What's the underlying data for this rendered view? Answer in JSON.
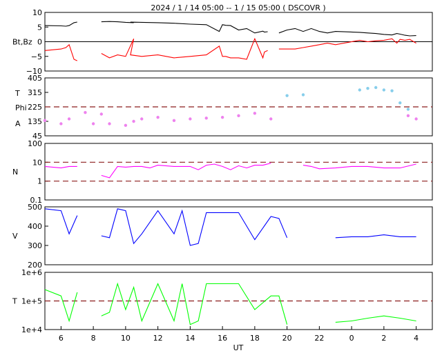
{
  "title": "2024 /  1 / 14   05:00  --   1 / 15   05:00 ( DSCOVR )",
  "xlabel": "UT",
  "x_ticks": [
    "6",
    "8",
    "10",
    "12",
    "14",
    "16",
    "18",
    "20",
    "22",
    "0",
    "2",
    "4"
  ],
  "colors": {
    "bt": "#000000",
    "bz": "#ff0000",
    "temp_mag": "#87ceeb",
    "phi": "#ee82ee",
    "phi_flag": "#aaaaaa",
    "density": "#ff00ff",
    "speed": "#0000ff",
    "temperature": "#00ff00",
    "ref_line": "#8b1a1a"
  },
  "chart_data": [
    {
      "type": "line",
      "panel": "Bt,Bz",
      "ylabel": "Bt,Bz",
      "ylim": [
        -10,
        10
      ],
      "y_ticks": [
        "10",
        "5",
        "0",
        "−5",
        "−10"
      ],
      "x_hours_since_05UT": [
        0,
        1,
        1.3,
        1.5,
        1.8,
        2,
        2.3,
        3.5,
        4,
        4.5,
        5,
        5.5,
        5.3,
        6,
        7,
        8,
        9,
        10,
        10.8,
        11,
        11.2,
        11.5,
        12,
        12.5,
        13,
        13.5,
        13.6,
        13.8,
        14,
        14.5,
        15,
        15.5,
        16,
        16.5,
        17,
        17.5,
        18,
        19.5,
        20,
        20.5,
        21,
        21.5,
        21.8,
        22,
        22.3,
        22.6,
        23
      ],
      "series": [
        {
          "name": "Bt",
          "values": [
            5.5,
            5.4,
            5.3,
            5.5,
            6.5,
            6.7,
            null,
            6.8,
            6.9,
            6.8,
            6.6,
            6.5,
            6.7,
            6.6,
            6.5,
            6.3,
            6.0,
            5.8,
            3.5,
            5.8,
            5.6,
            5.5,
            4.0,
            4.5,
            3.0,
            3.6,
            3.3,
            3.4,
            null,
            3.0,
            4.0,
            4.5,
            3.5,
            4.5,
            3.5,
            3.0,
            3.5,
            3.2,
            3.0,
            2.8,
            2.5,
            2.3,
            2.8,
            2.6,
            2.2,
            2.0,
            2.1
          ]
        },
        {
          "name": "Bz",
          "values": [
            -3,
            -2.5,
            -2,
            -1,
            -6,
            -6.5,
            null,
            -4,
            -5.5,
            -4.5,
            -5,
            1,
            -4.5,
            -5,
            -4.5,
            -5.5,
            -5,
            -4.5,
            -1.5,
            -5,
            -5,
            -5.5,
            -5.5,
            -6,
            1,
            -5.5,
            -3.5,
            -3,
            null,
            -2.5,
            -2.5,
            -2.5,
            -2,
            -1.5,
            -1,
            -0.5,
            -1,
            0.5,
            0,
            0.3,
            0.5,
            1,
            -0.5,
            0.8,
            0.5,
            0.8,
            -0.5
          ]
        }
      ]
    },
    {
      "type": "scatter",
      "panel": "T / Phi / A",
      "ylabel_lines": [
        "T",
        "Phi",
        "A"
      ],
      "ylim": [
        45,
        405
      ],
      "y_ticks": [
        "405",
        "315",
        "225",
        "135",
        "45"
      ],
      "reference_lines": [
        225
      ],
      "x_hours_since_05UT": [
        0,
        1,
        1.5,
        2.5,
        3,
        3.5,
        4,
        5,
        5.5,
        6,
        7,
        8,
        9,
        10,
        11,
        12,
        13,
        14,
        15,
        16,
        17,
        17.5,
        18,
        19.5,
        20,
        20.5,
        21,
        21.5,
        22,
        22.5,
        23
      ],
      "series": [
        {
          "name": "T",
          "values": [
            null,
            null,
            null,
            null,
            null,
            null,
            null,
            null,
            null,
            null,
            null,
            null,
            null,
            null,
            null,
            null,
            null,
            null,
            295,
            300,
            null,
            null,
            null,
            330,
            340,
            345,
            330,
            325,
            250,
            210,
            null
          ]
        },
        {
          "name": "Phi",
          "values": [
            140,
            120,
            150,
            190,
            120,
            180,
            120,
            110,
            135,
            150,
            160,
            140,
            150,
            155,
            160,
            170,
            185,
            150,
            null,
            null,
            null,
            null,
            null,
            null,
            null,
            null,
            null,
            null,
            null,
            170,
            150
          ]
        }
      ]
    },
    {
      "type": "line",
      "panel": "N",
      "ylabel": "N",
      "scale": "log",
      "ylim": [
        0.1,
        100
      ],
      "y_ticks": [
        "100",
        "10",
        "1",
        "0.1"
      ],
      "reference_lines": [
        1,
        10
      ],
      "x_hours_since_05UT": [
        0,
        1,
        1.5,
        2,
        2.3,
        3.5,
        4,
        4.5,
        5,
        5.5,
        6,
        6.5,
        7,
        8,
        9,
        9.5,
        10,
        10.5,
        11,
        11.5,
        12,
        12.5,
        13,
        13.5,
        14,
        15,
        15.5,
        16,
        16.5,
        17,
        18,
        19,
        20,
        21,
        22,
        23
      ],
      "series": [
        {
          "name": "N",
          "values": [
            6,
            5,
            6,
            6,
            null,
            2,
            1.5,
            6,
            5.5,
            6,
            6,
            5,
            7,
            6,
            6,
            4,
            7,
            8,
            6,
            4,
            6.5,
            5,
            7,
            7,
            9,
            null,
            null,
            7,
            6,
            4.5,
            5,
            6,
            6,
            5,
            5,
            8
          ]
        }
      ]
    },
    {
      "type": "line",
      "panel": "V",
      "ylabel": "V",
      "ylim": [
        200,
        500
      ],
      "y_ticks": [
        "500",
        "400",
        "300",
        "200"
      ],
      "x_hours_since_05UT": [
        0,
        1,
        1.5,
        2,
        2.3,
        3.5,
        4,
        4.5,
        5,
        5.5,
        6,
        7,
        8,
        8.5,
        9,
        9.5,
        10,
        11,
        12,
        13,
        14,
        14.5,
        15,
        16,
        17,
        18,
        19,
        20,
        21,
        22,
        23
      ],
      "series": [
        {
          "name": "V",
          "values": [
            490,
            480,
            360,
            455,
            null,
            350,
            340,
            490,
            480,
            310,
            360,
            480,
            360,
            480,
            300,
            310,
            470,
            470,
            470,
            330,
            450,
            440,
            340,
            null,
            null,
            340,
            345,
            345,
            355,
            345,
            345
          ]
        }
      ]
    },
    {
      "type": "line",
      "panel": "T",
      "ylabel": "T",
      "scale": "log",
      "ylim": [
        10000,
        1000000
      ],
      "y_ticks": [
        "1e+6",
        "1e+5",
        "1e+4"
      ],
      "reference_lines": [
        100000
      ],
      "x_hours_since_05UT": [
        0,
        1,
        1.5,
        2,
        2.3,
        3.5,
        4,
        4.5,
        5,
        5.5,
        6,
        7,
        8,
        8.5,
        9,
        9.5,
        10,
        11,
        12,
        13,
        14,
        14.5,
        15,
        16,
        17,
        18,
        19,
        20,
        21,
        22,
        23
      ],
      "series": [
        {
          "name": "T",
          "values": [
            250000,
            150000,
            20000,
            200000,
            null,
            30000,
            40000,
            400000,
            50000,
            300000,
            20000,
            400000,
            20000,
            400000,
            15000,
            20000,
            400000,
            400000,
            400000,
            50000,
            150000,
            150000,
            15000,
            null,
            null,
            18000,
            20000,
            25000,
            30000,
            25000,
            20000
          ]
        }
      ]
    }
  ]
}
